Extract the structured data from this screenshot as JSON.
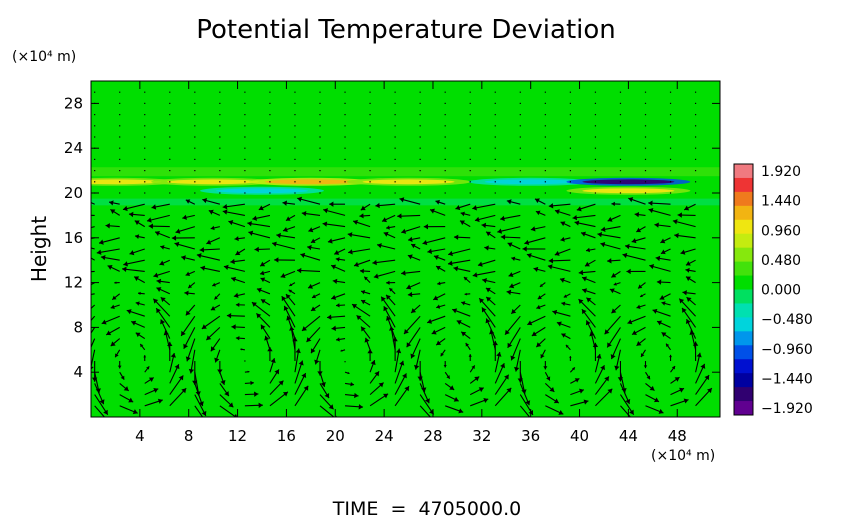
{
  "chart_data": {
    "type": "heatmap",
    "title": "Potential Temperature Deviation",
    "xlabel": "",
    "ylabel": "Height",
    "x_unit": "(×10⁴ m)",
    "y_unit": "(×10⁴ m)",
    "xlim": [
      0,
      51.5
    ],
    "ylim": [
      0,
      30
    ],
    "x_ticks": [
      4,
      8,
      12,
      16,
      20,
      24,
      28,
      32,
      36,
      40,
      44,
      48
    ],
    "y_ticks": [
      4,
      8,
      12,
      16,
      20,
      24,
      28
    ],
    "x_tick_labels": [
      "4",
      "8",
      "12",
      "16",
      "20",
      "24",
      "28",
      "32",
      "36",
      "40",
      "44",
      "48"
    ],
    "y_tick_labels": [
      "4",
      "8",
      "12",
      "16",
      "20",
      "24",
      "28"
    ],
    "colorbar": {
      "min": -1.92,
      "max": 1.92,
      "labels": [
        "1.920",
        "1.440",
        "0.960",
        "0.480",
        "0.000",
        "−0.480",
        "−0.960",
        "−1.440",
        "−1.920"
      ],
      "colors": [
        "#f07a80",
        "#ee3434",
        "#ef7a1d",
        "#f2b412",
        "#efe611",
        "#c4ec10",
        "#86e80d",
        "#42e20b",
        "#00de00",
        "#00e060",
        "#00e0b0",
        "#00d4dc",
        "#0096ec",
        "#0050e8",
        "#0010d0",
        "#0000a0",
        "#300070",
        "#600090"
      ]
    },
    "background_value": 0.0,
    "anomaly_band": {
      "height_range": [
        19.5,
        21.5
      ],
      "description_values": [
        {
          "x": 2,
          "y": 21.0,
          "value": 0.9
        },
        {
          "x": 10,
          "y": 21.0,
          "value": 0.9
        },
        {
          "x": 18,
          "y": 21.0,
          "value": 1.2
        },
        {
          "x": 26,
          "y": 21.0,
          "value": 1.0
        },
        {
          "x": 44,
          "y": 20.2,
          "value": 0.9
        },
        {
          "x": 14,
          "y": 20.2,
          "value": -0.6
        },
        {
          "x": 36,
          "y": 21.0,
          "value": -0.5
        },
        {
          "x": 44,
          "y": 21.0,
          "value": -1.5
        }
      ]
    },
    "vectors": "wind field arrows; lower-layer convective cells (y < 11) and upper-layer westward flow (y 13–20)",
    "annotation": "TIME  =  4705000.0"
  }
}
